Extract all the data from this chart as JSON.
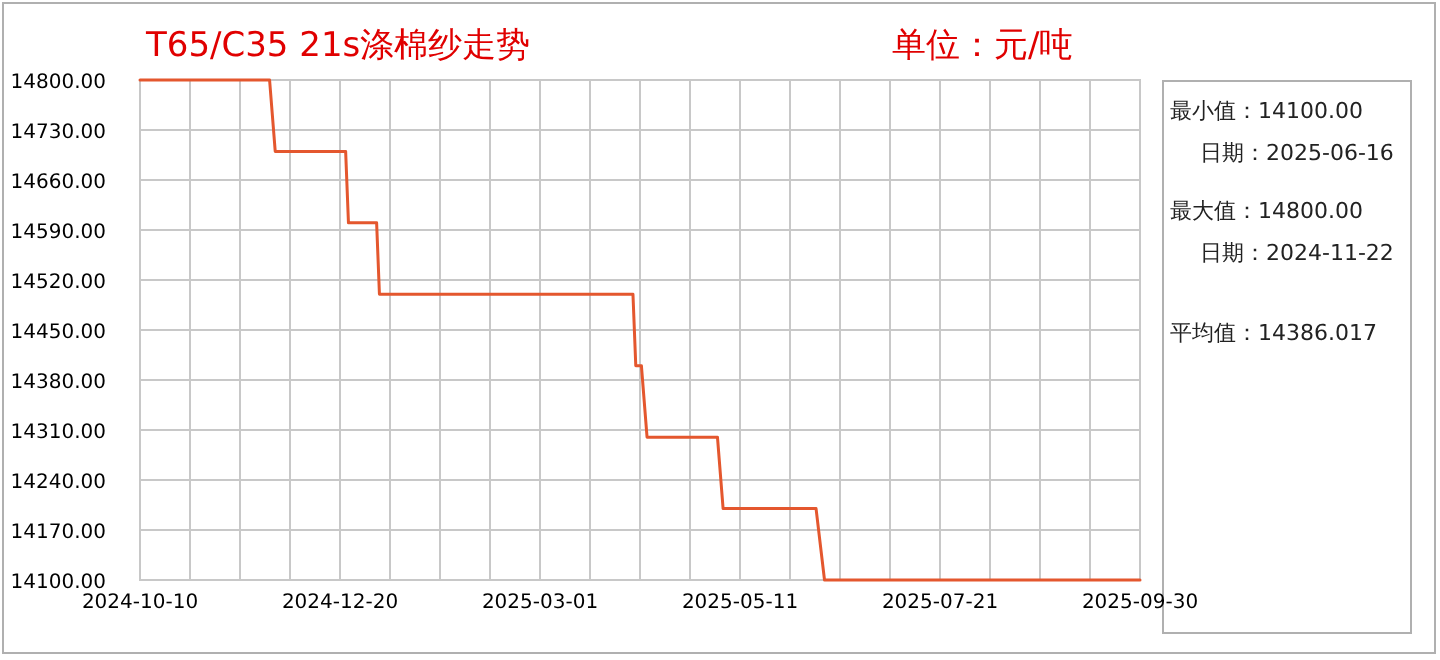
{
  "chart_data": {
    "type": "line",
    "title": "T65/C35 21s涤棉纱走势",
    "subtitle": "单位：元/吨",
    "annotations": [
      "最小值：14100.00",
      "日期：2025-06-16",
      "最大值：14800.00",
      "日期：2024-11-22",
      "平均值：14386.017"
    ],
    "series": [
      {
        "color": "#e4572e",
        "x": [
          "2024-10-10",
          "2024-11-25",
          "2024-11-27",
          "2024-12-22",
          "2024-12-23",
          "2025-01-02",
          "2025-01-03",
          "2025-04-03",
          "2025-04-04",
          "2025-04-06",
          "2025-04-08",
          "2025-05-03",
          "2025-05-05",
          "2025-06-07",
          "2025-06-10",
          "2025-09-30"
        ],
        "values": [
          14800,
          14800,
          14700,
          14700,
          14600,
          14600,
          14500,
          14500,
          14400,
          14400,
          14300,
          14300,
          14200,
          14200,
          14100,
          14100
        ]
      }
    ],
    "xlim": [
      "2024-10-10",
      "2025-09-30"
    ],
    "xticks": [
      {
        "value": "2024-10-10",
        "label": "2024-10-10"
      },
      {
        "value": "2024-10-27T18:00",
        "label": null
      },
      {
        "value": "2024-11-14T12:00",
        "label": null
      },
      {
        "value": "2024-12-02T06:00",
        "label": null
      },
      {
        "value": "2024-12-20",
        "label": "2024-12-20"
      },
      {
        "value": "2025-01-06T18:00",
        "label": null
      },
      {
        "value": "2025-01-24T12:00",
        "label": null
      },
      {
        "value": "2025-02-11T06:00",
        "label": null
      },
      {
        "value": "2025-03-01",
        "label": "2025-03-01"
      },
      {
        "value": "2025-03-18T18:00",
        "label": null
      },
      {
        "value": "2025-04-05T12:00",
        "label": null
      },
      {
        "value": "2025-04-23T06:00",
        "label": null
      },
      {
        "value": "2025-05-11",
        "label": "2025-05-11"
      },
      {
        "value": "2025-05-28T18:00",
        "label": null
      },
      {
        "value": "2025-06-15T12:00",
        "label": null
      },
      {
        "value": "2025-07-03T06:00",
        "label": null
      },
      {
        "value": "2025-07-21",
        "label": "2025-07-21"
      },
      {
        "value": "2025-08-07T18:00",
        "label": null
      },
      {
        "value": "2025-08-25T12:00",
        "label": null
      },
      {
        "value": "2025-09-12T06:00",
        "label": null
      },
      {
        "value": "2025-09-30",
        "label": "2025-09-30"
      }
    ],
    "ylim": [
      14100,
      14800
    ],
    "yticks": [
      {
        "value": 14100,
        "label": "14100.00"
      },
      {
        "value": 14170,
        "label": "14170.00"
      },
      {
        "value": 14240,
        "label": "14240.00"
      },
      {
        "value": 14310,
        "label": "14310.00"
      },
      {
        "value": 14380,
        "label": "14380.00"
      },
      {
        "value": 14450,
        "label": "14450.00"
      },
      {
        "value": 14520,
        "label": "14520.00"
      },
      {
        "value": 14590,
        "label": "14590.00"
      },
      {
        "value": 14660,
        "label": "14660.00"
      },
      {
        "value": 14730,
        "label": "14730.00"
      },
      {
        "value": 14800,
        "label": "14800.00"
      }
    ],
    "grid": true
  }
}
